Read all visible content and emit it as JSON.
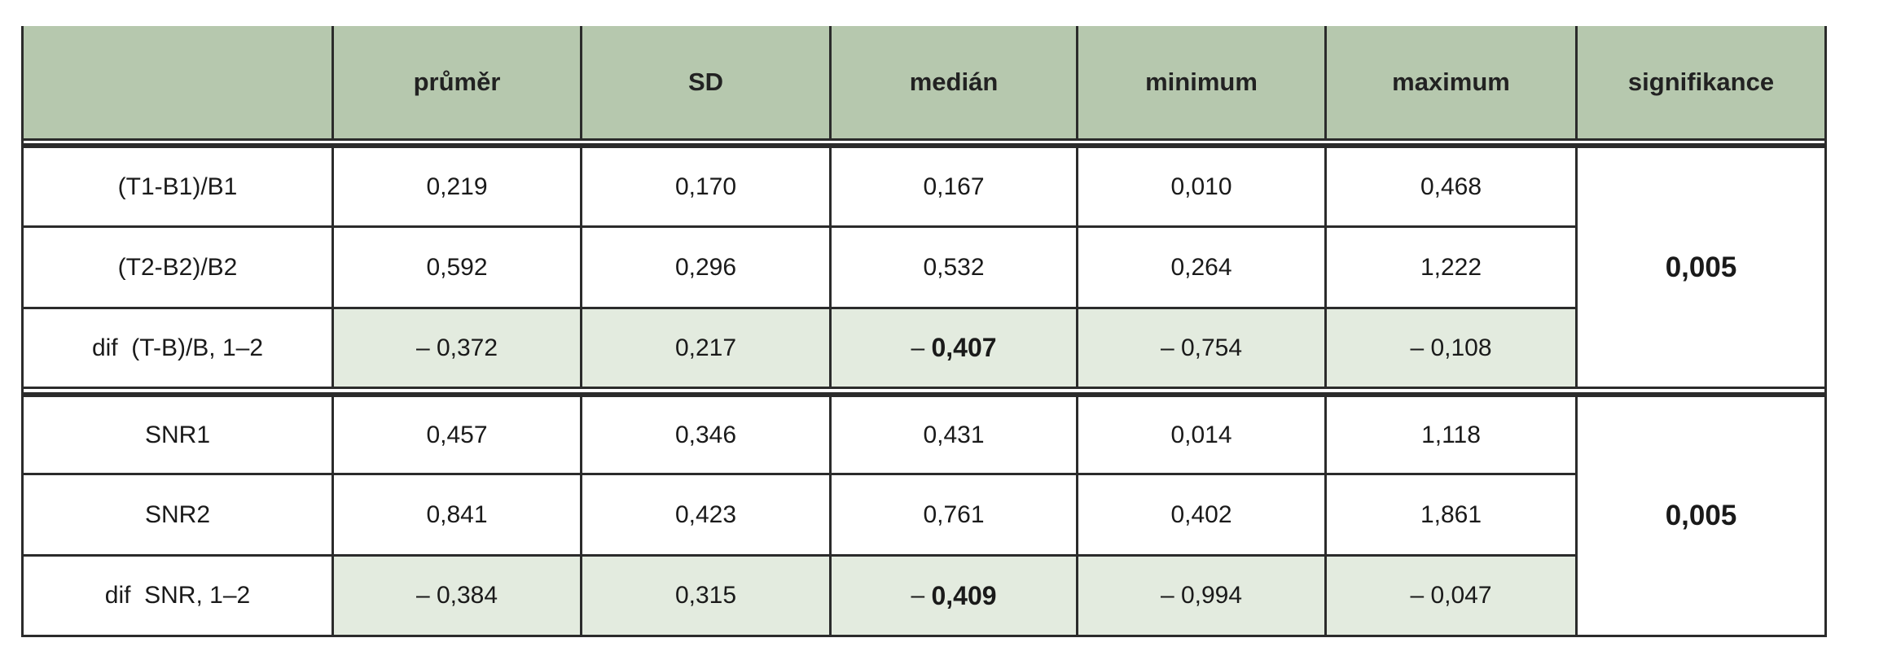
{
  "header": {
    "columns": [
      "průměr",
      "SD",
      "medián",
      "minimum",
      "maximum",
      "signifikance"
    ]
  },
  "groups": [
    {
      "rows": [
        {
          "label": "(T1-B1)/B1",
          "cells": [
            "0,219",
            "0,170",
            "0,167",
            "0,010",
            "0,468"
          ]
        },
        {
          "label": "(T2-B2)/B2",
          "cells": [
            "0,592",
            "0,296",
            "0,532",
            "0,264",
            "1,222"
          ]
        },
        {
          "label": "dif  (T-B)/B, 1–2",
          "cells": [
            "– 0,372",
            "0,217",
            {
              "prefix": "–",
              "text": "0,407"
            },
            "– 0,754",
            "– 0,108"
          ]
        }
      ],
      "significance": "0,005"
    },
    {
      "rows": [
        {
          "label": "SNR1",
          "cells": [
            "0,457",
            "0,346",
            "0,431",
            "0,014",
            "1,118"
          ]
        },
        {
          "label": "SNR2",
          "cells": [
            "0,841",
            "0,423",
            "0,761",
            "0,402",
            "1,861"
          ]
        },
        {
          "label": "dif  SNR, 1–2",
          "cells": [
            "– 0,384",
            "0,315",
            {
              "prefix": "–",
              "text": "0,409"
            },
            "– 0,994",
            "– 0,047"
          ]
        }
      ],
      "significance": "0,005"
    }
  ]
}
